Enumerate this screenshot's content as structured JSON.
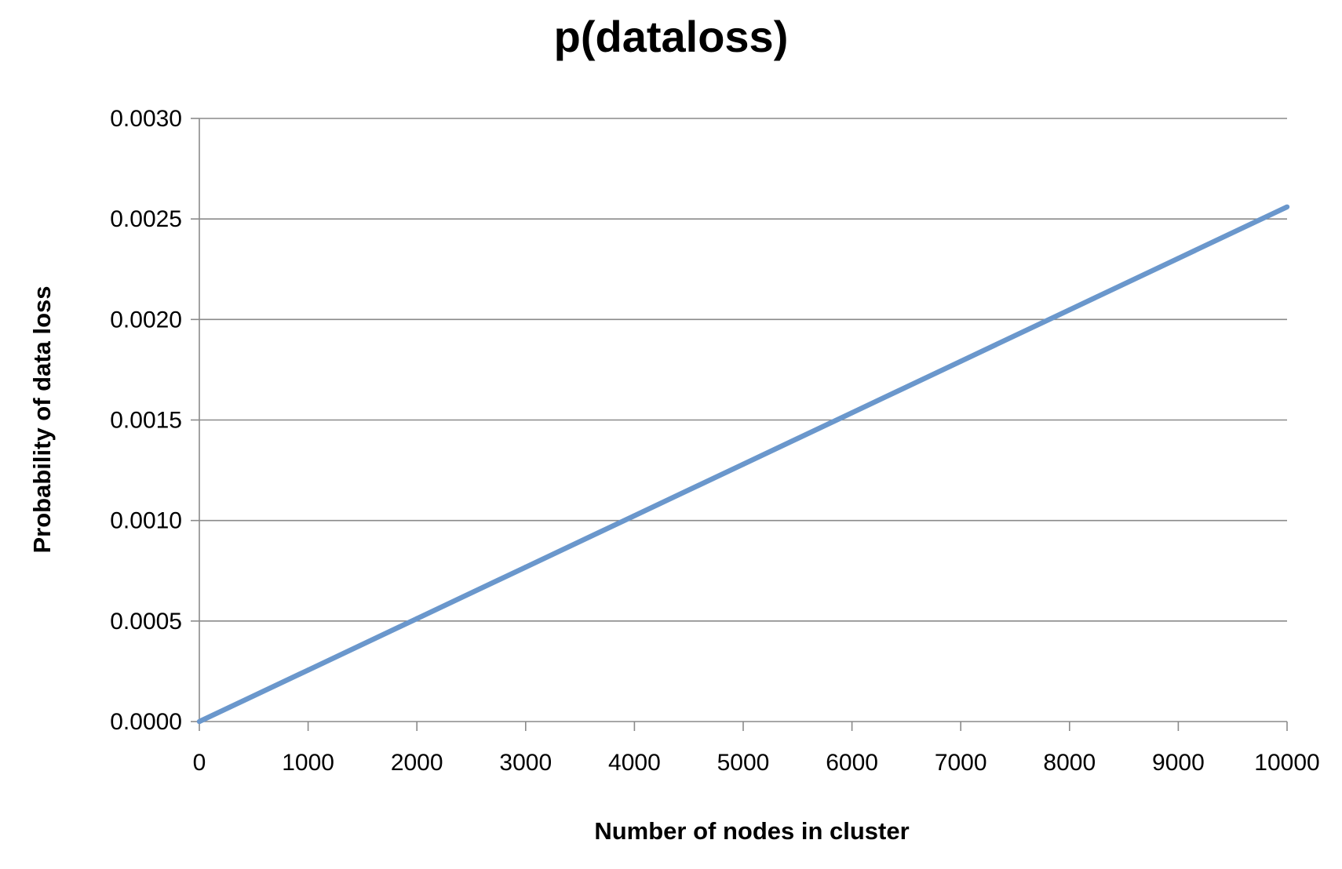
{
  "chart_data": {
    "type": "line",
    "title": "p(dataloss)",
    "xlabel": "Number of nodes in cluster",
    "ylabel": "Probability of data loss",
    "xlim": [
      0,
      10000
    ],
    "ylim": [
      0,
      0.003
    ],
    "x_ticks": [
      "0",
      "1000",
      "2000",
      "3000",
      "4000",
      "5000",
      "6000",
      "7000",
      "8000",
      "9000",
      "10000"
    ],
    "y_ticks": [
      "0.0000",
      "0.0005",
      "0.0010",
      "0.0015",
      "0.0020",
      "0.0025",
      "0.0030"
    ],
    "grid": true,
    "legend": "none",
    "series": [
      {
        "color": "#6a97cc",
        "x": [
          0,
          1000,
          2000,
          3000,
          4000,
          5000,
          6000,
          7000,
          8000,
          9000,
          10000
        ],
        "y": [
          0,
          0.000256,
          0.000512,
          0.000768,
          0.001024,
          0.00128,
          0.001536,
          0.001792,
          0.002048,
          0.002304,
          0.00256
        ]
      }
    ]
  }
}
